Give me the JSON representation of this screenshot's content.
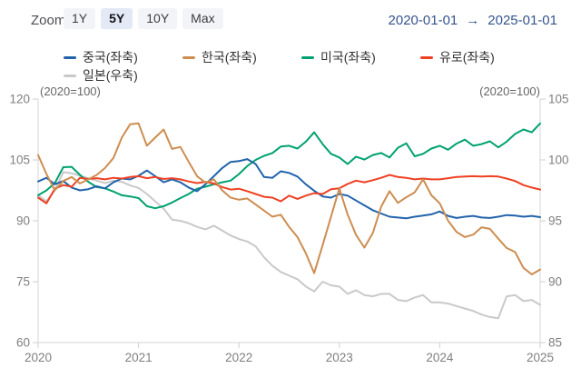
{
  "toolbar": {
    "zoom_label": "Zoom",
    "buttons": [
      {
        "id": "1y",
        "label": "1Y",
        "selected": false
      },
      {
        "id": "5y",
        "label": "5Y",
        "selected": true
      },
      {
        "id": "10y",
        "label": "10Y",
        "selected": false
      },
      {
        "id": "max",
        "label": "Max",
        "selected": false
      }
    ],
    "date_from": "2020-01-01",
    "date_arrow": "→",
    "date_to": "2025-01-01"
  },
  "legend": [
    {
      "id": "china",
      "label": "중국(좌축)",
      "color": "#2163ab"
    },
    {
      "id": "korea",
      "label": "한국(좌축)",
      "color": "#cd8d50"
    },
    {
      "id": "us",
      "label": "미국(좌축)",
      "color": "#00a170"
    },
    {
      "id": "euro",
      "label": "유로(좌축)",
      "color": "#ee4023"
    },
    {
      "id": "japan",
      "label": "일본(우축)",
      "color": "#c9c9c9"
    }
  ],
  "chart_data": {
    "type": "line",
    "title": "",
    "grid": false,
    "legend_position": "top",
    "left_axis": {
      "caption": "(2020=100)",
      "ticks": [
        120,
        105,
        90,
        75,
        60
      ],
      "range": [
        60,
        120
      ]
    },
    "right_axis": {
      "caption": "(2020=100)",
      "ticks": [
        105,
        100,
        95,
        90,
        85
      ],
      "range": [
        85,
        105
      ]
    },
    "x_axis": {
      "tick_labels": [
        "2020",
        "2021",
        "2022",
        "2023",
        "2024",
        "2025"
      ],
      "start": "2020-01",
      "end": "2025-01",
      "interval": "monthly"
    },
    "series": [
      {
        "id": "japan",
        "name": "일본(우축)",
        "axis": "right",
        "color": "#c9c9c9",
        "values": [
          97.1,
          96.6,
          97.5,
          99.0,
          98.9,
          98.7,
          98.5,
          98.3,
          98.1,
          98.3,
          98.2,
          97.9,
          97.7,
          97.2,
          96.6,
          96.0,
          95.1,
          95.0,
          94.8,
          94.5,
          94.3,
          94.6,
          94.2,
          93.8,
          93.5,
          93.3,
          92.9,
          92.0,
          91.3,
          90.8,
          90.5,
          90.2,
          89.6,
          89.2,
          90.0,
          89.7,
          89.6,
          89.0,
          89.3,
          88.9,
          88.8,
          89.0,
          89.0,
          88.5,
          88.4,
          88.7,
          88.9,
          88.3,
          88.3,
          88.2,
          88.0,
          87.8,
          87.6,
          87.3,
          87.1,
          87.0,
          88.8,
          88.9,
          88.4,
          88.5,
          88.1
        ]
      },
      {
        "id": "us",
        "name": "미국(좌축)",
        "axis": "left",
        "color": "#00a170",
        "values": [
          96.3,
          97.5,
          99.3,
          103.2,
          103.3,
          101.3,
          99.6,
          98.3,
          98.0,
          97.2,
          96.3,
          96.0,
          95.6,
          93.6,
          93.1,
          93.6,
          94.5,
          95.6,
          96.6,
          97.9,
          98.4,
          99.0,
          99.5,
          99.9,
          101.5,
          103.5,
          105.0,
          106.0,
          106.7,
          108.3,
          108.5,
          107.8,
          109.5,
          111.8,
          108.9,
          106.5,
          105.6,
          104.0,
          105.8,
          105.1,
          106.2,
          106.7,
          105.6,
          108.0,
          109.1,
          105.9,
          106.5,
          107.8,
          108.5,
          107.5,
          109.0,
          110.0,
          108.5,
          108.9,
          109.6,
          108.1,
          109.5,
          111.4,
          112.5,
          111.8,
          114.0
        ]
      },
      {
        "id": "china",
        "name": "중국(좌축)",
        "axis": "left",
        "color": "#2163ab",
        "values": [
          99.7,
          100.6,
          99.0,
          99.8,
          98.2,
          97.5,
          97.8,
          98.5,
          98.0,
          99.5,
          100.4,
          100.2,
          101.1,
          102.4,
          101.0,
          99.5,
          100.2,
          99.5,
          98.2,
          97.3,
          99.0,
          101.0,
          103.0,
          104.5,
          104.7,
          105.2,
          104.0,
          100.8,
          100.6,
          102.2,
          101.8,
          100.9,
          99.0,
          97.4,
          96.0,
          95.7,
          96.6,
          96.2,
          95.0,
          93.8,
          92.6,
          91.8,
          91.0,
          90.8,
          90.6,
          91.0,
          91.3,
          91.6,
          92.3,
          91.2,
          90.7,
          91.0,
          91.2,
          90.8,
          90.7,
          91.0,
          91.4,
          91.3,
          91.0,
          91.2,
          90.9
        ]
      },
      {
        "id": "euro",
        "name": "유로(좌축)",
        "axis": "left",
        "color": "#ee4023",
        "values": [
          95.7,
          94.3,
          97.9,
          98.8,
          98.4,
          100.6,
          100.3,
          100.5,
          100.2,
          100.6,
          100.4,
          100.8,
          101.0,
          100.5,
          100.8,
          100.3,
          100.5,
          100.2,
          99.7,
          99.3,
          99.6,
          99.2,
          98.3,
          97.7,
          97.9,
          97.3,
          96.6,
          95.9,
          95.7,
          94.8,
          96.2,
          95.4,
          96.2,
          96.8,
          96.6,
          97.8,
          98.0,
          99.1,
          99.9,
          99.5,
          100.0,
          100.6,
          101.3,
          100.8,
          100.6,
          100.2,
          100.4,
          100.2,
          100.2,
          100.5,
          100.8,
          100.9,
          101.0,
          100.9,
          101.0,
          100.9,
          100.4,
          99.8,
          98.8,
          98.2,
          97.7
        ]
      },
      {
        "id": "korea",
        "name": "한국(좌축)",
        "axis": "left",
        "color": "#cd8d50",
        "values": [
          106.2,
          101.5,
          97.5,
          99.8,
          100.8,
          99.2,
          100.2,
          101.3,
          103.0,
          105.5,
          110.5,
          113.8,
          114.0,
          108.5,
          110.5,
          112.5,
          107.7,
          108.2,
          104.5,
          101.0,
          99.4,
          100.2,
          97.5,
          95.7,
          95.2,
          95.5,
          94.0,
          92.5,
          91.0,
          91.5,
          88.5,
          86.0,
          82.0,
          77.1,
          84.0,
          91.0,
          98.0,
          91.5,
          86.5,
          83.4,
          87.0,
          93.5,
          97.3,
          94.4,
          95.8,
          97.0,
          100.2,
          96.3,
          94.3,
          90.0,
          87.3,
          86.0,
          86.6,
          88.4,
          88.0,
          85.6,
          83.3,
          82.3,
          78.4,
          76.8,
          78.0
        ]
      }
    ]
  },
  "style": {
    "axis_line_color": "#d6d6d6",
    "tick_color": "#cfcfcf",
    "axis_text_color": "#7f7f7f",
    "accent_blue": "#35548e"
  }
}
